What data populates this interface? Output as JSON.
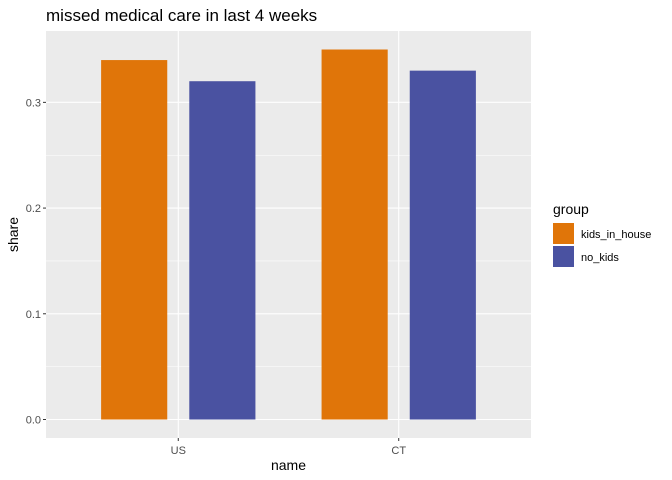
{
  "chart_data": {
    "type": "bar",
    "title": "missed medical care in last 4 weeks",
    "xlabel": "name",
    "ylabel": "share",
    "categories": [
      "US",
      "CT"
    ],
    "series": [
      {
        "name": "kids_in_house",
        "values": [
          0.34,
          0.35
        ],
        "color": "#E07509"
      },
      {
        "name": "no_kids",
        "values": [
          0.32,
          0.33
        ],
        "color": "#4A52A1"
      }
    ],
    "ylim": [
      -0.0175,
      0.3675
    ],
    "yticks": [
      0.0,
      0.1,
      0.2,
      0.3
    ],
    "ytick_labels": [
      "0.0",
      "0.1",
      "0.2",
      "0.3"
    ],
    "grid": true,
    "panel_background": "#EBEBEB",
    "legend": {
      "title": "group",
      "placement": "right"
    }
  }
}
